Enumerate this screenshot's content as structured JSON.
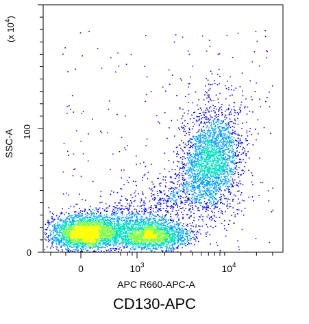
{
  "caption": "CD130-APC",
  "chart_data": {
    "type": "scatter",
    "rendering": "density",
    "xlabel": "APC R660-APC-A",
    "ylabel": "SSC-A",
    "y_multiplier_label": "(x 10",
    "y_multiplier_exp": "4",
    "x_scale": "biexponential",
    "x_ticks": [
      {
        "value": 0,
        "label": "0"
      },
      {
        "value": 1000,
        "label": "10",
        "exp": "3"
      },
      {
        "value": 10000,
        "label": "10",
        "exp": "4"
      }
    ],
    "y_ticks": [
      {
        "value": 0,
        "label": "0"
      },
      {
        "value": 100,
        "label": "100"
      }
    ],
    "ylim": [
      0,
      185
    ],
    "density_colors": [
      "#0000ff",
      "#00a0ff",
      "#00e0c0",
      "#80ff40",
      "#ffff00"
    ],
    "populations": [
      {
        "x": 200,
        "y": 16,
        "points": 2600
      },
      {
        "x": 1400,
        "y": 14,
        "points": 1900
      },
      {
        "x": 6500,
        "y": 75,
        "points": 2100
      }
    ]
  }
}
